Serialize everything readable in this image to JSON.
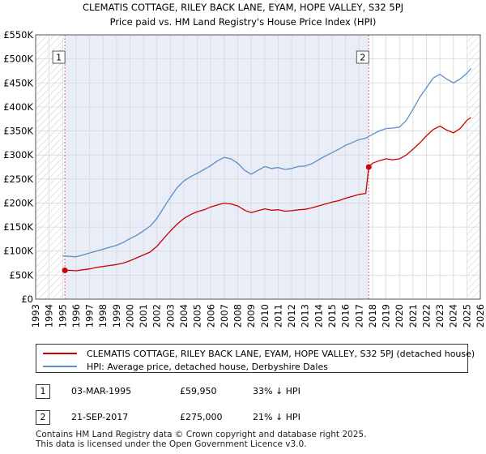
{
  "chart_data": {
    "type": "line",
    "title": "CLEMATIS COTTAGE, RILEY BACK LANE, EYAM, HOPE VALLEY, S32 5PJ",
    "subtitle": "Price paid vs. HM Land Registry's House Price Index (HPI)",
    "xlabel": "",
    "ylabel": "",
    "xlim": [
      1993,
      2026
    ],
    "ylim": [
      0,
      550000
    ],
    "y_ticks": [
      0,
      50000,
      100000,
      150000,
      200000,
      250000,
      300000,
      350000,
      400000,
      450000,
      500000,
      550000
    ],
    "y_tick_labels": [
      "£0",
      "£50K",
      "£100K",
      "£150K",
      "£200K",
      "£250K",
      "£300K",
      "£350K",
      "£400K",
      "£450K",
      "£500K",
      "£550K"
    ],
    "x_ticks": [
      1993,
      1994,
      1995,
      1996,
      1997,
      1998,
      1999,
      2000,
      2001,
      2002,
      2003,
      2004,
      2005,
      2006,
      2007,
      2008,
      2009,
      2010,
      2011,
      2012,
      2013,
      2014,
      2015,
      2016,
      2017,
      2018,
      2019,
      2020,
      2021,
      2022,
      2023,
      2024,
      2025,
      2026
    ],
    "x_tick_labels": [
      "1993",
      "1994",
      "1995",
      "1996",
      "1997",
      "1998",
      "1999",
      "2000",
      "2001",
      "2002",
      "2003",
      "2004",
      "2005",
      "2006",
      "2007",
      "2008",
      "2009",
      "2010",
      "2011",
      "2012",
      "2013",
      "2014",
      "2015",
      "2016",
      "2017",
      "2018",
      "2019",
      "2020",
      "2021",
      "2022",
      "2023",
      "2024",
      "2025",
      "2026"
    ],
    "grid": true,
    "series": [
      {
        "name": "CLEMATIS COTTAGE, RILEY BACK LANE, EYAM, HOPE VALLEY, S32 5PJ (detached house)",
        "color": "#cc0000",
        "x": [
          1995.17,
          1995.5,
          1996.0,
          1996.5,
          1997.0,
          1997.5,
          1998.0,
          1998.5,
          1999.0,
          1999.5,
          2000.0,
          2000.5,
          2001.0,
          2001.5,
          2002.0,
          2002.5,
          2003.0,
          2003.5,
          2004.0,
          2004.5,
          2005.0,
          2005.5,
          2006.0,
          2006.5,
          2007.0,
          2007.5,
          2008.0,
          2008.5,
          2009.0,
          2009.5,
          2010.0,
          2010.5,
          2011.0,
          2011.5,
          2012.0,
          2012.5,
          2013.0,
          2013.5,
          2014.0,
          2014.5,
          2015.0,
          2015.5,
          2016.0,
          2016.5,
          2017.0,
          2017.5,
          2017.72,
          2018.0,
          2018.5,
          2019.0,
          2019.5,
          2020.0,
          2020.5,
          2021.0,
          2021.5,
          2022.0,
          2022.5,
          2023.0,
          2023.5,
          2024.0,
          2024.5,
          2025.0,
          2025.3
        ],
        "values": [
          59950,
          60000,
          59000,
          61000,
          63000,
          66000,
          68000,
          70000,
          72000,
          75000,
          80000,
          86000,
          92000,
          98000,
          110000,
          126000,
          142000,
          156000,
          168000,
          176000,
          182000,
          186000,
          192000,
          196000,
          200000,
          198000,
          194000,
          185000,
          180000,
          184000,
          188000,
          185000,
          186000,
          183000,
          184000,
          186000,
          187000,
          190000,
          194000,
          198000,
          202000,
          205000,
          210000,
          214000,
          218000,
          220000,
          275000,
          283000,
          288000,
          292000,
          290000,
          292000,
          300000,
          312000,
          325000,
          340000,
          353000,
          360000,
          352000,
          346000,
          355000,
          372000,
          378000
        ]
      },
      {
        "name": "HPI: Average price, detached house, Derbyshire Dales",
        "color": "#5b8fc7",
        "x": [
          1995.0,
          1995.5,
          1996.0,
          1996.5,
          1997.0,
          1997.5,
          1998.0,
          1998.5,
          1999.0,
          1999.5,
          2000.0,
          2000.5,
          2001.0,
          2001.5,
          2002.0,
          2002.5,
          2003.0,
          2003.5,
          2004.0,
          2004.5,
          2005.0,
          2005.5,
          2006.0,
          2006.5,
          2007.0,
          2007.5,
          2008.0,
          2008.5,
          2009.0,
          2009.5,
          2010.0,
          2010.5,
          2011.0,
          2011.5,
          2012.0,
          2012.5,
          2013.0,
          2013.5,
          2014.0,
          2014.5,
          2015.0,
          2015.5,
          2016.0,
          2016.5,
          2017.0,
          2017.5,
          2018.0,
          2018.5,
          2019.0,
          2019.5,
          2020.0,
          2020.5,
          2021.0,
          2021.5,
          2022.0,
          2022.5,
          2023.0,
          2023.5,
          2024.0,
          2024.5,
          2025.0,
          2025.3
        ],
        "values": [
          90000,
          89000,
          88000,
          92000,
          96000,
          100000,
          104000,
          108000,
          112000,
          118000,
          126000,
          133000,
          142000,
          152000,
          168000,
          190000,
          212000,
          232000,
          246000,
          255000,
          262000,
          270000,
          278000,
          288000,
          295000,
          292000,
          283000,
          268000,
          260000,
          268000,
          276000,
          272000,
          274000,
          270000,
          272000,
          276000,
          277000,
          282000,
          290000,
          298000,
          305000,
          312000,
          320000,
          326000,
          332000,
          335000,
          343000,
          350000,
          355000,
          356000,
          358000,
          372000,
          395000,
          420000,
          440000,
          460000,
          468000,
          458000,
          450000,
          458000,
          470000,
          480000
        ]
      }
    ],
    "sales": [
      {
        "number": "1",
        "x": 1995.17,
        "y": 59950
      },
      {
        "number": "2",
        "x": 2017.72,
        "y": 275000
      }
    ]
  },
  "legend": {
    "property_label": "CLEMATIS COTTAGE, RILEY BACK LANE, EYAM, HOPE VALLEY, S32 5PJ (detached house)",
    "hpi_label": "HPI: Average price, detached house, Derbyshire Dales"
  },
  "sales_table": [
    {
      "number": "1",
      "date": "03-MAR-1995",
      "price": "£59,950",
      "hpi": "33% ↓ HPI"
    },
    {
      "number": "2",
      "date": "21-SEP-2017",
      "price": "£275,000",
      "hpi": "21% ↓ HPI"
    }
  ],
  "footer": {
    "line1": "Contains HM Land Registry data © Crown copyright and database right 2025.",
    "line2": "This data is licensed under the Open Government Licence v3.0."
  },
  "colors": {
    "property": "#cc0000",
    "hpi": "#5b8fc7",
    "shade": "#e8edf8",
    "hatch": "#bbbbbb",
    "marker_line": "#e07070"
  }
}
